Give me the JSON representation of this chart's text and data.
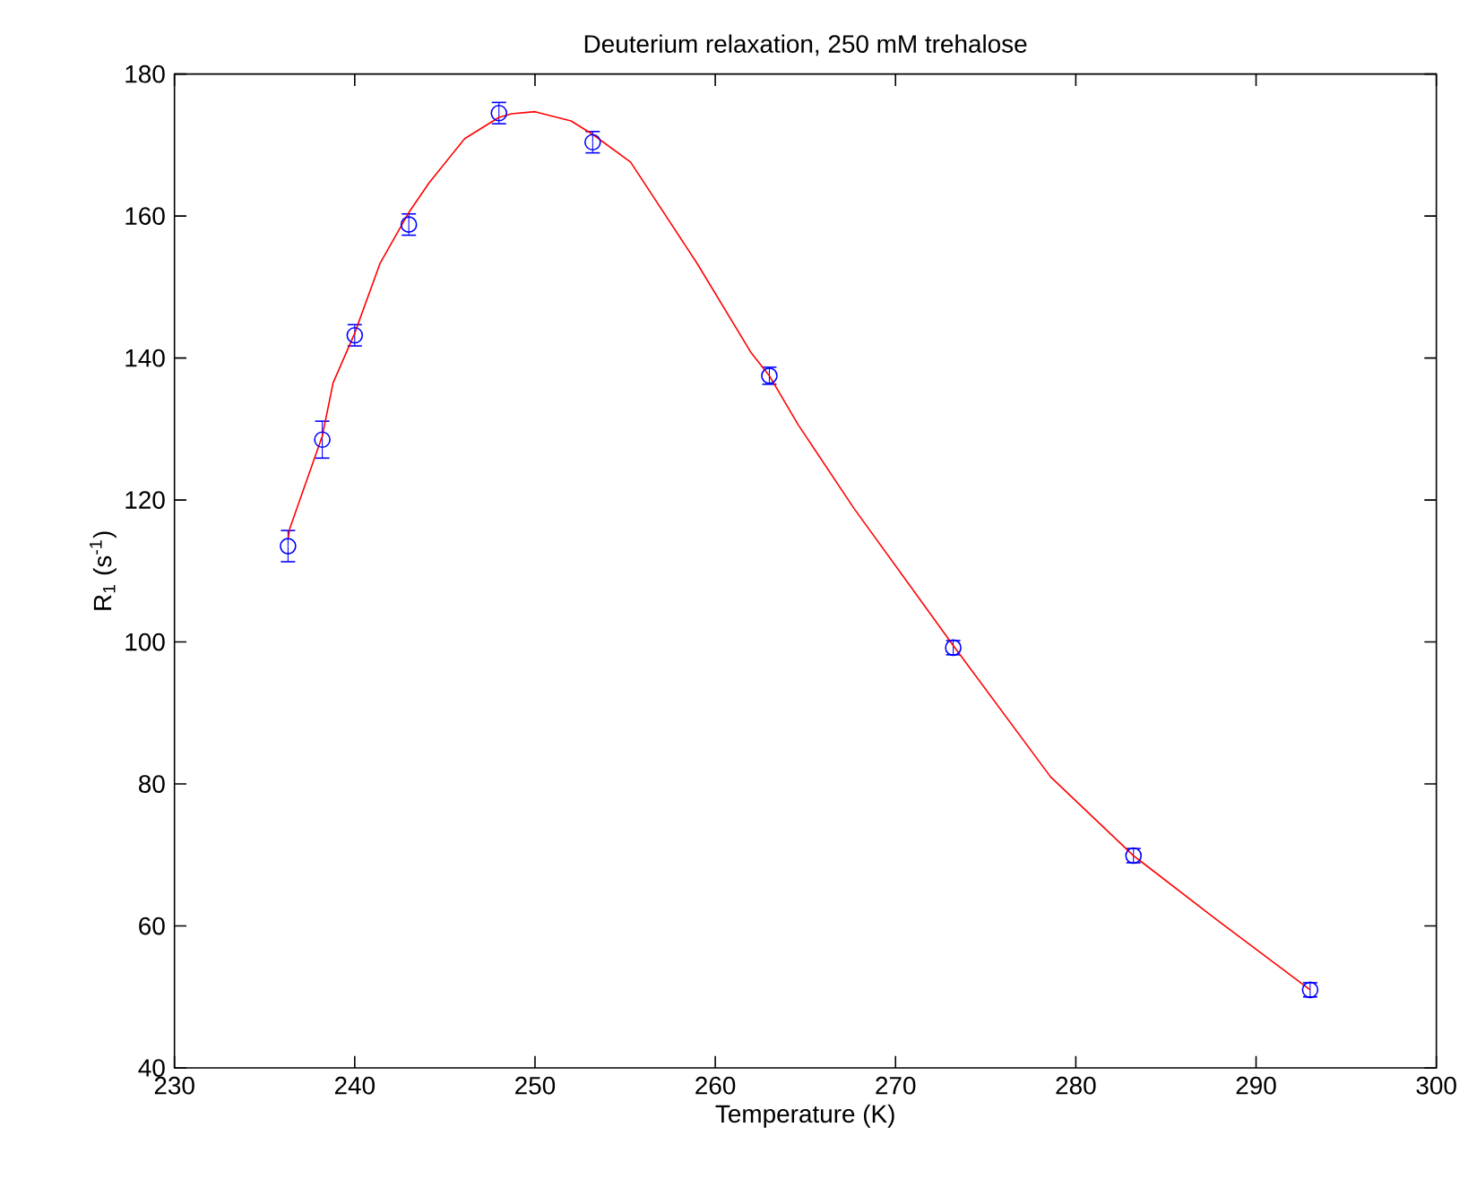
{
  "chart_data": {
    "type": "scatter",
    "title": "Deuterium relaxation, 250 mM trehalose",
    "xlabel": "Temperature (K)",
    "ylabel": "R$_{1}$ (s$^{-1}$)",
    "xlim": [
      230,
      300
    ],
    "xticks": [
      230,
      240,
      250,
      260,
      270,
      280,
      290,
      300
    ],
    "ylim": [
      40,
      180
    ],
    "yticks": [
      40,
      60,
      80,
      100,
      120,
      140,
      160,
      180
    ],
    "series": [
      {
        "color": "#0000ff",
        "marker": "circle",
        "x": [
          236.3,
          238.2,
          240,
          243,
          248,
          253.2,
          263,
          273.2,
          283.2,
          293
        ],
        "values": [
          113.5,
          128.5,
          143.2,
          158.8,
          174.5,
          170.4,
          137.5,
          99.2,
          69.9,
          51.0
        ],
        "errors": [
          2.2,
          2.6,
          1.5,
          1.5,
          1.5,
          1.5,
          1.2,
          1,
          1,
          1
        ]
      },
      {
        "type": "line",
        "color": "#ff0000",
        "marker": "none",
        "x": [
          236.3,
          236.4,
          238.2,
          238.8,
          240,
          241.4,
          243,
          244.1,
          246.1,
          248,
          248.7,
          250.0,
          252.0,
          253.2,
          255.3,
          259.0,
          262.0,
          263,
          264.6,
          267.7,
          273.2,
          278.6,
          283.2,
          287.8,
          293
        ],
        "values": [
          114.5,
          116,
          129,
          136.5,
          143.5,
          153.3,
          160.5,
          164.6,
          170.9,
          173.9,
          174.4,
          174.7,
          173.4,
          171.5,
          167.6,
          153.3,
          140.7,
          137.5,
          130.6,
          118.8,
          99.5,
          81.0,
          69.9,
          60.9,
          51.0
        ]
      }
    ]
  }
}
